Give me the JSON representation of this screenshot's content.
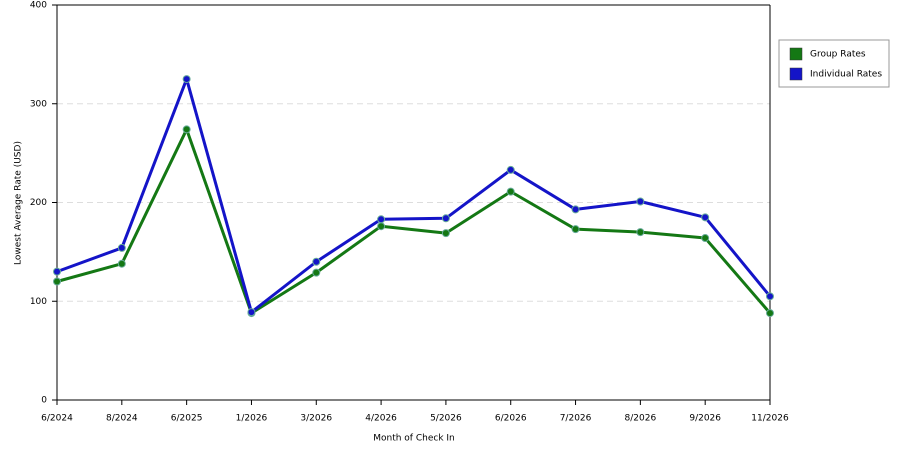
{
  "chart_data": {
    "type": "line",
    "x_label": "Month of Check In",
    "y_label": "Lowest Average Rate (USD)",
    "categories": [
      "6/2024",
      "8/2024",
      "6/2025",
      "1/2026",
      "3/2026",
      "4/2026",
      "5/2026",
      "6/2026",
      "7/2026",
      "8/2026",
      "9/2026",
      "11/2026"
    ],
    "series": [
      {
        "name": "Group Rates",
        "color": "#147814",
        "values": [
          120,
          138,
          274,
          88,
          129,
          176,
          169,
          211,
          173,
          170,
          164,
          88
        ]
      },
      {
        "name": "Individual Rates",
        "color": "#1414c8",
        "values": [
          130,
          154,
          325,
          89,
          140,
          183,
          184,
          233,
          193,
          201,
          185,
          105
        ]
      }
    ],
    "ylim": [
      0,
      400
    ],
    "yticks": [
      0,
      100,
      200,
      300,
      400
    ],
    "grid": true,
    "legend": "right"
  }
}
